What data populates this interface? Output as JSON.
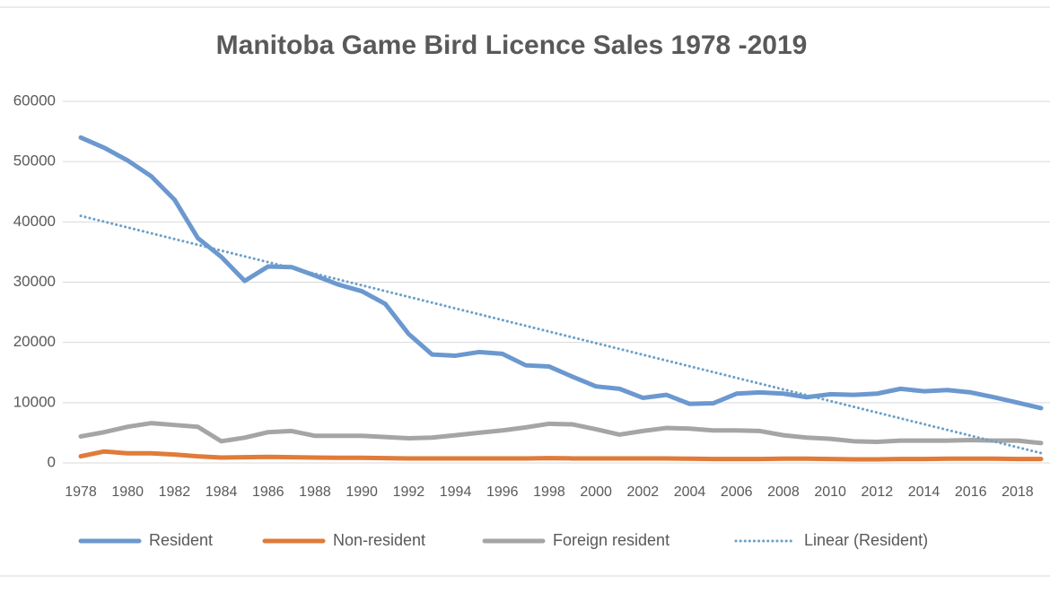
{
  "chart_data": {
    "type": "line",
    "title": "Manitoba Game Bird Licence Sales 1978 -2019",
    "x": [
      1978,
      1979,
      1980,
      1981,
      1982,
      1983,
      1984,
      1985,
      1986,
      1987,
      1988,
      1989,
      1990,
      1991,
      1992,
      1993,
      1994,
      1995,
      1996,
      1997,
      1998,
      1999,
      2000,
      2001,
      2002,
      2003,
      2004,
      2005,
      2006,
      2007,
      2008,
      2009,
      2010,
      2011,
      2012,
      2013,
      2014,
      2015,
      2016,
      2017,
      2018,
      2019
    ],
    "xlim": [
      1978,
      2019
    ],
    "xticks": [
      1978,
      1980,
      1982,
      1984,
      1986,
      1988,
      1990,
      1992,
      1994,
      1996,
      1998,
      2000,
      2002,
      2004,
      2006,
      2008,
      2010,
      2012,
      2014,
      2016,
      2018
    ],
    "ylim": [
      0,
      60000
    ],
    "yticks": [
      0,
      10000,
      20000,
      30000,
      40000,
      50000,
      60000
    ],
    "grid": true,
    "legend": "bottom",
    "series": [
      {
        "name": "Resident",
        "color": "#6b98cf",
        "style": "solid",
        "values": [
          54000,
          52300,
          50200,
          47600,
          43700,
          37300,
          34200,
          30200,
          32600,
          32500,
          31100,
          29600,
          28500,
          26400,
          21400,
          18000,
          17800,
          18400,
          18100,
          16200,
          16000,
          14300,
          12700,
          12300,
          10800,
          11300,
          9800,
          9900,
          11500,
          11700,
          11500,
          10900,
          11400,
          11300,
          11500,
          12300,
          11900,
          12100,
          11700,
          10900,
          10000,
          9100
        ]
      },
      {
        "name": "Non-resident",
        "color": "#e07b39",
        "style": "solid",
        "values": [
          1100,
          1900,
          1600,
          1600,
          1400,
          1100,
          900,
          950,
          1000,
          950,
          900,
          850,
          850,
          800,
          750,
          750,
          750,
          750,
          750,
          750,
          800,
          750,
          750,
          750,
          750,
          750,
          700,
          650,
          650,
          650,
          700,
          700,
          650,
          600,
          600,
          650,
          650,
          700,
          700,
          700,
          650,
          650
        ]
      },
      {
        "name": "Foreign resident",
        "color": "#a5a5a5",
        "style": "solid",
        "values": [
          4400,
          5100,
          6000,
          6600,
          6300,
          6000,
          3600,
          4200,
          5100,
          5300,
          4500,
          4500,
          4500,
          4300,
          4100,
          4200,
          4600,
          5000,
          5400,
          5900,
          6500,
          6400,
          5600,
          4700,
          5300,
          5800,
          5700,
          5400,
          5400,
          5300,
          4600,
          4200,
          4000,
          3600,
          3500,
          3700,
          3700,
          3700,
          3800,
          3700,
          3700,
          3300
        ]
      },
      {
        "name": "Linear (Resident)",
        "color": "#6a9fc8",
        "style": "dotted",
        "values": [
          41000,
          40040,
          39080,
          38120,
          37160,
          36200,
          35240,
          34280,
          33320,
          32360,
          31400,
          30440,
          29480,
          28520,
          27560,
          26600,
          25640,
          24680,
          23720,
          22760,
          21800,
          20840,
          19880,
          18920,
          17960,
          17000,
          16040,
          15080,
          14120,
          13160,
          12200,
          11240,
          10280,
          9320,
          8360,
          7400,
          6440,
          5480,
          4520,
          3560,
          2600,
          1640
        ]
      }
    ]
  }
}
